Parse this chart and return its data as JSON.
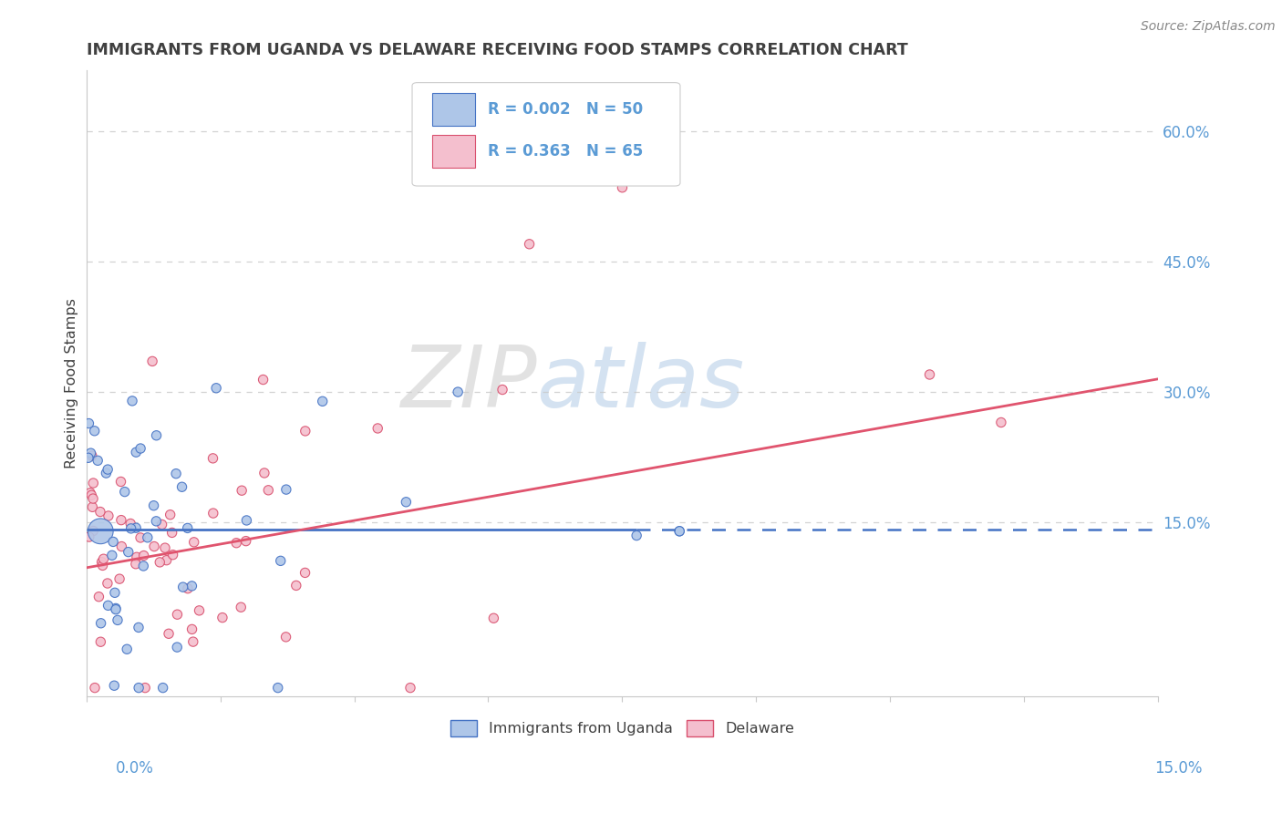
{
  "title": "IMMIGRANTS FROM UGANDA VS DELAWARE RECEIVING FOOD STAMPS CORRELATION CHART",
  "source": "Source: ZipAtlas.com",
  "ylabel": "Receiving Food Stamps",
  "right_yticks": [
    0.15,
    0.3,
    0.45,
    0.6
  ],
  "right_yticklabels": [
    "15.0%",
    "30.0%",
    "45.0%",
    "60.0%"
  ],
  "xlim": [
    0.0,
    0.15
  ],
  "ylim": [
    -0.05,
    0.67
  ],
  "series": [
    {
      "name": "Immigrants from Uganda",
      "R": 0.002,
      "N": 50,
      "marker_color": "#aec6e8",
      "marker_edge_color": "#4472c4",
      "line_color": "#4472c4"
    },
    {
      "name": "Delaware",
      "R": 0.363,
      "N": 65,
      "marker_color": "#f4bfce",
      "marker_edge_color": "#d9506e",
      "line_color": "#e0546e"
    }
  ],
  "uganda_trend_y": 0.142,
  "delaware_trend_x0": 0.0,
  "delaware_trend_y0": 0.098,
  "delaware_trend_x1": 0.15,
  "delaware_trend_y1": 0.315,
  "dashed_line_y": 0.142,
  "dashed_line_x_start": 0.077,
  "title_color": "#404040",
  "axis_color": "#5b9bd5",
  "grid_color": "#c8c8c8",
  "background_color": "#ffffff",
  "watermark_zip_color": "#d0d0d0",
  "watermark_atlas_color": "#b8d0e8"
}
